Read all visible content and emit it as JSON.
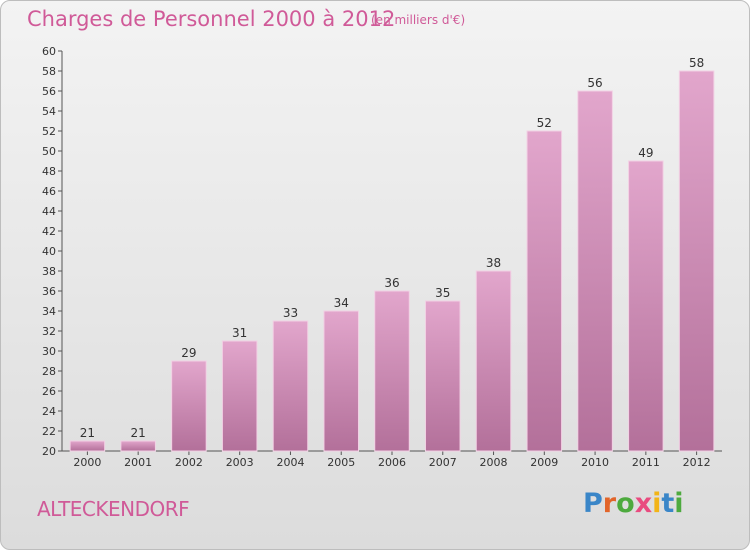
{
  "header": {
    "title": "Charges de Personnel 2000 à 2012",
    "subtitle": "(en milliers d'€)"
  },
  "footer": {
    "commune": "ALTECKENDORF",
    "logo_text": "Proxiti",
    "logo_letters": [
      {
        "ch": "P",
        "color": "#3a86c8"
      },
      {
        "ch": "r",
        "color": "#e2652a"
      },
      {
        "ch": "o",
        "color": "#4daa3e"
      },
      {
        "ch": "x",
        "color": "#e94b7f"
      },
      {
        "ch": "i",
        "color": "#f2b418"
      },
      {
        "ch": "t",
        "color": "#3a86c8"
      },
      {
        "ch": "i",
        "color": "#4daa3e"
      }
    ]
  },
  "chart_data": {
    "type": "bar",
    "categories": [
      "2000",
      "2001",
      "2002",
      "2003",
      "2004",
      "2005",
      "2006",
      "2007",
      "2008",
      "2009",
      "2010",
      "2011",
      "2012"
    ],
    "values": [
      21,
      21,
      29,
      31,
      33,
      34,
      36,
      35,
      38,
      52,
      56,
      49,
      58
    ],
    "title": "Charges de Personnel 2000 à 2012",
    "subtitle": "(en milliers d'€)",
    "xlabel": "",
    "ylabel": "",
    "ylim": [
      20,
      60
    ],
    "ytick_step": 2,
    "grid": false,
    "bar_color_top": "#e2a6cc",
    "bar_color_bottom": "#b3709a"
  }
}
